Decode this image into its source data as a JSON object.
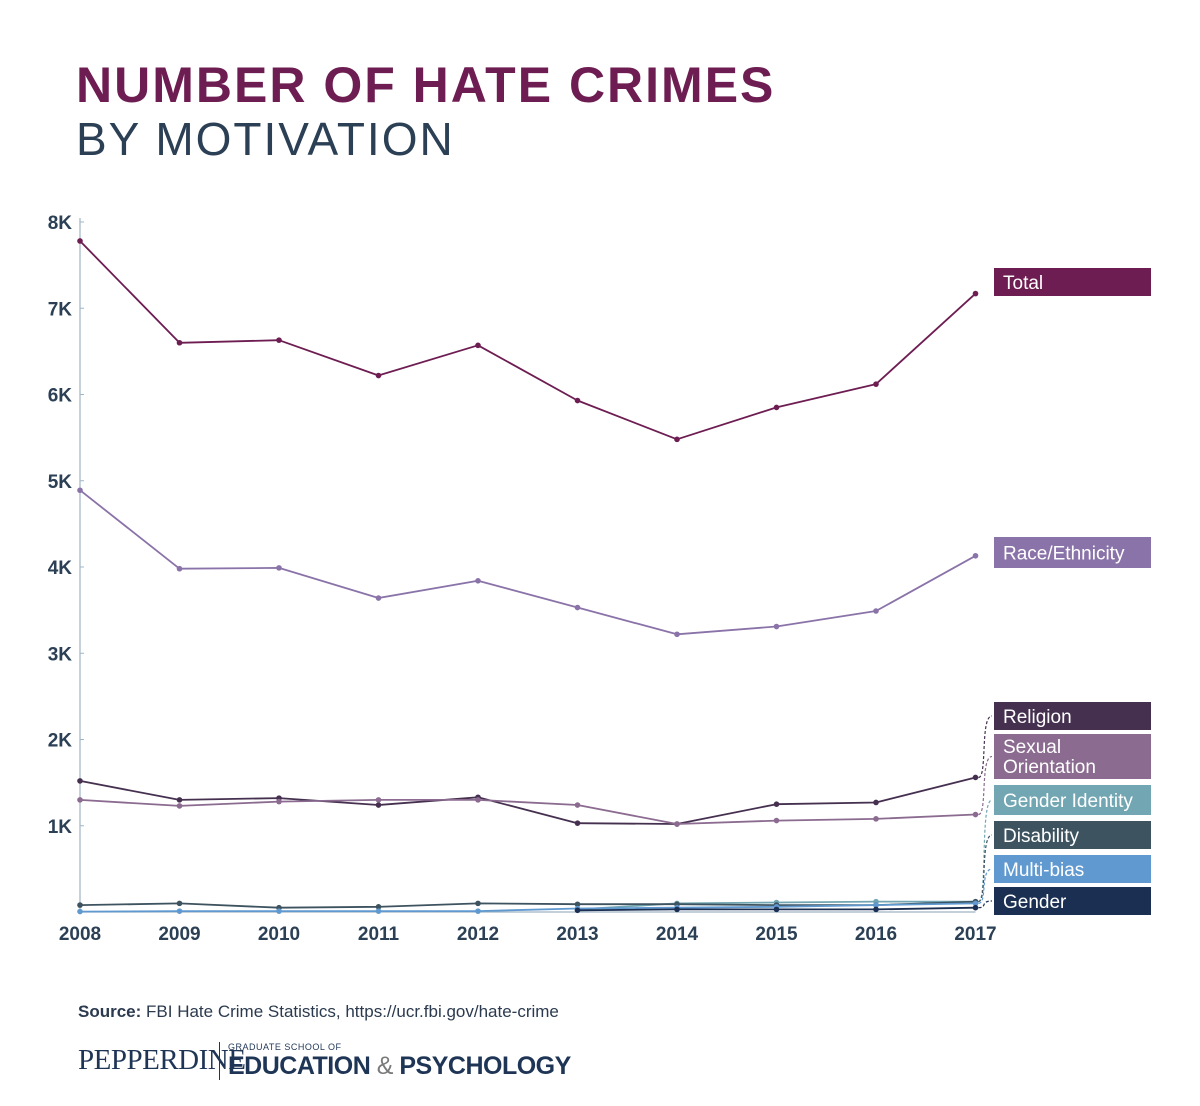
{
  "title": {
    "line1": "NUMBER OF HATE CRIMES",
    "line2": "BY MOTIVATION"
  },
  "source": {
    "label": "Source:",
    "text": "FBI Hate Crime Statistics, https://ucr.fbi.gov/hate-crime"
  },
  "logo": {
    "name": "PEPPERDINE",
    "small": "GRADUATE SCHOOL OF",
    "main": "EDUCATION",
    "amp": "&",
    "main2": "PSYCHOLOGY"
  },
  "chart_data": {
    "type": "line",
    "title": "NUMBER OF HATE CRIMES BY MOTIVATION",
    "xlabel": "",
    "ylabel": "",
    "categories": [
      "2008",
      "2009",
      "2010",
      "2011",
      "2012",
      "2013",
      "2014",
      "2015",
      "2016",
      "2017"
    ],
    "y_ticks": [
      {
        "value": 1000,
        "label": "1K"
      },
      {
        "value": 2000,
        "label": "2K"
      },
      {
        "value": 3000,
        "label": "3K"
      },
      {
        "value": 4000,
        "label": "4K"
      },
      {
        "value": 5000,
        "label": "5K"
      },
      {
        "value": 6000,
        "label": "6K"
      },
      {
        "value": 7000,
        "label": "7K"
      },
      {
        "value": 8000,
        "label": "8K"
      }
    ],
    "ylim": [
      0,
      8000
    ],
    "grid": false,
    "legend": "right",
    "series": [
      {
        "name": "Total",
        "key": "total",
        "color": "#6d1d52",
        "values": [
          7780,
          6600,
          6630,
          6220,
          6570,
          5930,
          5480,
          5850,
          6120,
          7170
        ]
      },
      {
        "name": "Race/Ethnicity",
        "key": "race",
        "color": "#8a73a8",
        "values": [
          4890,
          3980,
          3990,
          3640,
          3840,
          3530,
          3220,
          3310,
          3490,
          4130
        ]
      },
      {
        "name": "Religion",
        "key": "religion",
        "color": "#45304f",
        "values": [
          1520,
          1300,
          1320,
          1240,
          1330,
          1030,
          1020,
          1250,
          1270,
          1560
        ]
      },
      {
        "name": "Sexual Orientation",
        "key": "sexual_orientation",
        "color": "#8b6b90",
        "values": [
          1300,
          1230,
          1280,
          1300,
          1300,
          1240,
          1020,
          1060,
          1080,
          1130
        ]
      },
      {
        "name": "Gender Identity",
        "key": "gender_identity",
        "color": "#72a6b2",
        "values": [
          null,
          null,
          null,
          null,
          null,
          30,
          100,
          110,
          120,
          120
        ]
      },
      {
        "name": "Disability",
        "key": "disability",
        "color": "#3e5360",
        "values": [
          80,
          100,
          50,
          60,
          100,
          90,
          90,
          80,
          80,
          120
        ]
      },
      {
        "name": "Multi-bias",
        "key": "multi_bias",
        "color": "#5f99cf",
        "values": [
          5,
          10,
          10,
          10,
          10,
          40,
          50,
          60,
          80,
          100
        ]
      },
      {
        "name": "Gender",
        "key": "gender",
        "color": "#1b2f52",
        "values": [
          null,
          null,
          null,
          null,
          null,
          20,
          30,
          30,
          30,
          50
        ]
      }
    ]
  }
}
